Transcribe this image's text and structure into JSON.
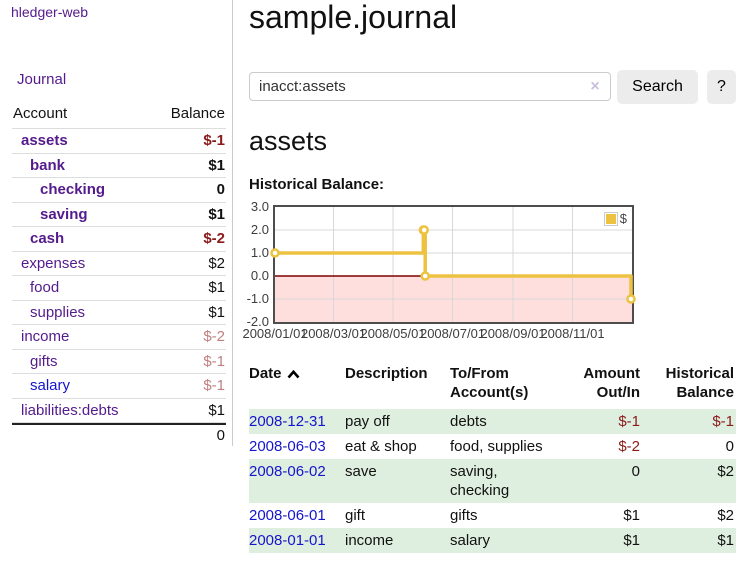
{
  "app": {
    "brand": "hledger-web"
  },
  "sidebar": {
    "journal_label": "Journal",
    "accounts": {
      "headers": {
        "account": "Account",
        "balance": "Balance"
      },
      "rows": [
        {
          "name": "assets",
          "balance": "$-1"
        },
        {
          "name": "bank",
          "balance": "$1"
        },
        {
          "name": "checking",
          "balance": "0"
        },
        {
          "name": "saving",
          "balance": "$1"
        },
        {
          "name": "cash",
          "balance": "$-2"
        },
        {
          "name": "expenses",
          "balance": "$2"
        },
        {
          "name": "food",
          "balance": "$1"
        },
        {
          "name": "supplies",
          "balance": "$1"
        },
        {
          "name": "income",
          "balance": "$-2"
        },
        {
          "name": "gifts",
          "balance": "$-1"
        },
        {
          "name": "salary",
          "balance": "$-1"
        },
        {
          "name": "liabilities:debts",
          "balance": "$1"
        }
      ],
      "total": "0"
    }
  },
  "main": {
    "title": "sample.journal",
    "search": {
      "value": "inacct:assets",
      "clear_icon": "×",
      "button_label": "Search",
      "help_label": "?"
    },
    "account_heading": "assets",
    "chart_label": "Historical Balance:"
  },
  "chart_data": {
    "type": "line",
    "style": "step",
    "title": "Historical Balance",
    "series": [
      {
        "name": "$",
        "color": "#edc240",
        "points": [
          [
            "2008-01-01",
            1
          ],
          [
            "2008-06-01",
            2
          ],
          [
            "2008-06-02",
            2
          ],
          [
            "2008-06-03",
            0
          ],
          [
            "2008-12-31",
            -1
          ]
        ]
      }
    ],
    "x_range": [
      "2008-01-01",
      "2009-01-01"
    ],
    "ylim": [
      -2,
      3
    ],
    "ytick_labels": [
      "3.0",
      "2.0",
      "1.0",
      "0.0",
      "-1.0",
      "-2.0"
    ],
    "xtick_labels": [
      "2008/01/01",
      "2008/03/01",
      "2008/05/01",
      "2008/07/01",
      "2008/09/01",
      "2008/11/01"
    ],
    "below_zero_fill": "#ffdede",
    "zero_line_color": "#7d0000",
    "grid": true,
    "legend_position": "top-right"
  },
  "transactions": {
    "headers": {
      "date": "Date",
      "description": "Description",
      "tofrom_line1": "To/From",
      "tofrom_line2": "Account(s)",
      "amount_line1": "Amount",
      "amount_line2": "Out/In",
      "hist_line1": "Historical",
      "hist_line2": "Balance"
    },
    "rows": [
      {
        "date": "2008-12-31",
        "description": "pay off",
        "accounts": "debts",
        "amount": "$-1",
        "balance": "$-1"
      },
      {
        "date": "2008-06-03",
        "description": "eat & shop",
        "accounts": "food, supplies",
        "amount": "$-2",
        "balance": "0"
      },
      {
        "date": "2008-06-02",
        "description": "save",
        "accounts": "saving,\nchecking",
        "amount": "0",
        "balance": "$2"
      },
      {
        "date": "2008-06-01",
        "description": "gift",
        "accounts": "gifts",
        "amount": "$1",
        "balance": "$2"
      },
      {
        "date": "2008-01-01",
        "description": "income",
        "accounts": "salary",
        "amount": "$1",
        "balance": "$1"
      }
    ]
  },
  "colors": {
    "link_purple": "#541b8c",
    "link_blue": "#1515cd",
    "negative_strong": "#8b1a1a",
    "negative_soft": "#c08080",
    "row_green": "#dfefdf",
    "chart_line": "#edc240",
    "chart_below_zero": "#ffdede",
    "zero_line": "#7d0000",
    "button_bg": "#ececec"
  }
}
